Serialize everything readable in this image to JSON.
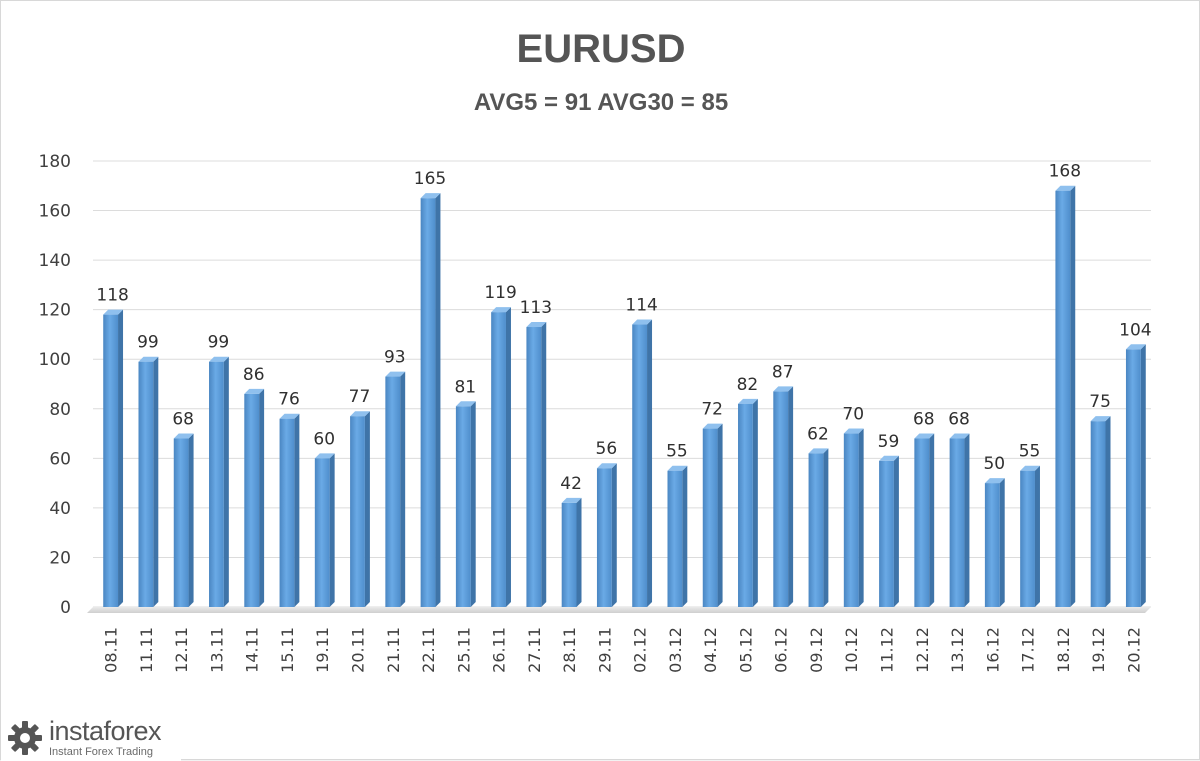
{
  "chart_data": {
    "type": "bar",
    "title": "EURUSD",
    "subtitle": "AVG5 = 91 AVG30 = 85",
    "xlabel": "",
    "ylabel": "",
    "ylim": [
      0,
      180
    ],
    "yticks": [
      0,
      20,
      40,
      60,
      80,
      100,
      120,
      140,
      160,
      180
    ],
    "grid": true,
    "legend": "none",
    "bar_color": "#5b9bd5",
    "categories": [
      "08.11",
      "11.11",
      "12.11",
      "13.11",
      "14.11",
      "15.11",
      "19.11",
      "20.11",
      "21.11",
      "22.11",
      "25.11",
      "26.11",
      "27.11",
      "28.11",
      "29.11",
      "02.12",
      "03.12",
      "04.12",
      "05.12",
      "06.12",
      "09.12",
      "10.12",
      "11.12",
      "12.12",
      "13.12",
      "16.12",
      "17.12",
      "18.12",
      "19.12",
      "20.12"
    ],
    "values": [
      118,
      99,
      68,
      99,
      86,
      76,
      60,
      77,
      93,
      165,
      81,
      119,
      113,
      42,
      56,
      114,
      55,
      72,
      82,
      87,
      62,
      70,
      59,
      68,
      68,
      50,
      55,
      168,
      75,
      104
    ]
  },
  "watermark": {
    "name": "instaforex",
    "tagline": "Instant Forex Trading"
  }
}
